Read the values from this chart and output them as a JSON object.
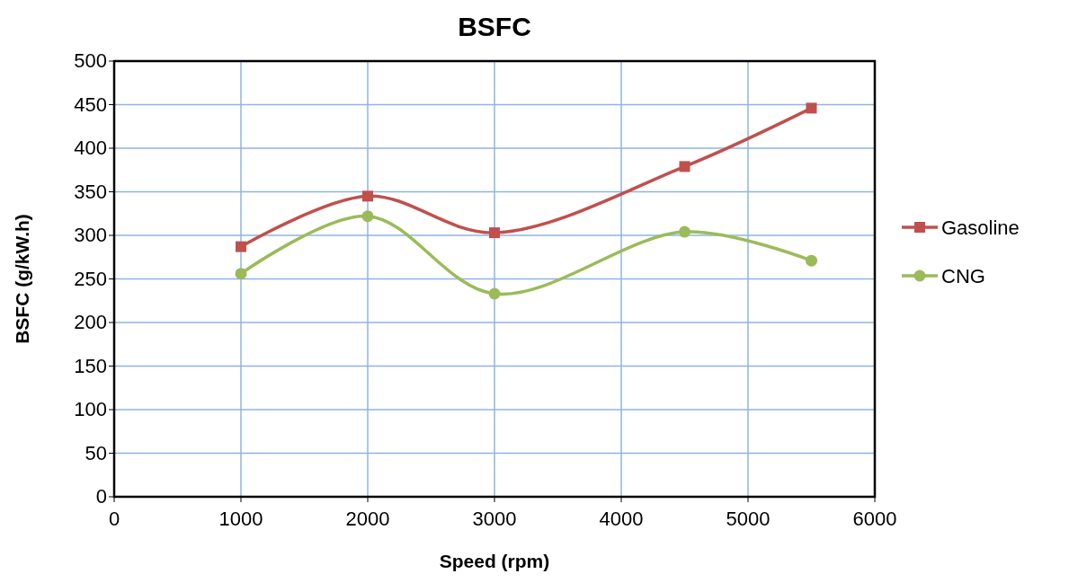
{
  "chart_data": {
    "type": "line",
    "title": "BSFC",
    "xlabel": "Speed (rpm)",
    "ylabel": "BSFC (g/kW.h)",
    "x": [
      1000,
      2000,
      3000,
      4500,
      5500
    ],
    "series": [
      {
        "name": "Gasoline",
        "color": "#c0504d",
        "marker": "square",
        "values": [
          287,
          345,
          303,
          379,
          446
        ]
      },
      {
        "name": "CNG",
        "color": "#9bbb59",
        "marker": "circle",
        "values": [
          256,
          322,
          233,
          304,
          271
        ]
      }
    ],
    "xlim": [
      0,
      6000
    ],
    "xticks": [
      0,
      1000,
      2000,
      3000,
      4000,
      5000,
      6000
    ],
    "ylim": [
      0,
      500
    ],
    "yticks": [
      0,
      50,
      100,
      150,
      200,
      250,
      300,
      350,
      400,
      450,
      500
    ],
    "grid": true,
    "legend": "right"
  }
}
